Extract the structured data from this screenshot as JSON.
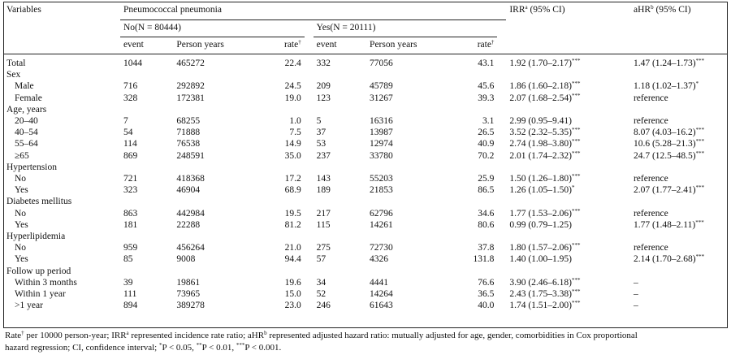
{
  "header": {
    "variables": "Variables",
    "group": "Pneumococcal pneumonia",
    "no_label": "No(N = 80444)",
    "yes_label": "Yes(N = 20111)",
    "irr_prefix": "IRR",
    "irr_sup": "a",
    "irr_suffix": " (95% CI)",
    "ahr_prefix": "aHR",
    "ahr_sup": "b",
    "ahr_suffix": " (95% CI)",
    "event": "event",
    "person_years": "Person years",
    "rate_prefix": "rate",
    "rate_sup": "†"
  },
  "rows": [
    {
      "label": "Total",
      "indent": false,
      "no_event": "1044",
      "no_py": "465272",
      "no_rate": "22.4",
      "yes_event": "332",
      "yes_py": "77056",
      "yes_rate": "43.1",
      "irr": "1.92 (1.70–2.17)",
      "irr_sig": "***",
      "ahr": "1.47 (1.24–1.73)",
      "ahr_sig": "***"
    },
    {
      "label": "Sex",
      "indent": false,
      "no_event": "",
      "no_py": "",
      "no_rate": "",
      "yes_event": "",
      "yes_py": "",
      "yes_rate": "",
      "irr": "",
      "irr_sig": "",
      "ahr": "",
      "ahr_sig": ""
    },
    {
      "label": "Male",
      "indent": true,
      "no_event": "716",
      "no_py": "292892",
      "no_rate": "24.5",
      "yes_event": "209",
      "yes_py": "45789",
      "yes_rate": "45.6",
      "irr": "1.86 (1.60–2.18)",
      "irr_sig": "***",
      "ahr": "1.18 (1.02–1.37)",
      "ahr_sig": "*"
    },
    {
      "label": "Female",
      "indent": true,
      "no_event": "328",
      "no_py": "172381",
      "no_rate": "19.0",
      "yes_event": "123",
      "yes_py": "31267",
      "yes_rate": "39.3",
      "irr": "2.07 (1.68–2.54)",
      "irr_sig": "***",
      "ahr": "reference",
      "ahr_sig": ""
    },
    {
      "label": "Age, years",
      "indent": false,
      "no_event": "",
      "no_py": "",
      "no_rate": "",
      "yes_event": "",
      "yes_py": "",
      "yes_rate": "",
      "irr": "",
      "irr_sig": "",
      "ahr": "",
      "ahr_sig": ""
    },
    {
      "label": "20–40",
      "indent": true,
      "no_event": "7",
      "no_py": "68255",
      "no_rate": "1.0",
      "yes_event": "5",
      "yes_py": "16316",
      "yes_rate": "3.1",
      "irr": "2.99 (0.95–9.41)",
      "irr_sig": "",
      "ahr": "reference",
      "ahr_sig": ""
    },
    {
      "label": "40–54",
      "indent": true,
      "no_event": "54",
      "no_py": "71888",
      "no_rate": "7.5",
      "yes_event": "37",
      "yes_py": "13987",
      "yes_rate": "26.5",
      "irr": "3.52 (2.32–5.35)",
      "irr_sig": "***",
      "ahr": "8.07 (4.03–16.2)",
      "ahr_sig": "***"
    },
    {
      "label": "55–64",
      "indent": true,
      "no_event": "114",
      "no_py": "76538",
      "no_rate": "14.9",
      "yes_event": "53",
      "yes_py": "12974",
      "yes_rate": "40.9",
      "irr": "2.74 (1.98–3.80)",
      "irr_sig": "***",
      "ahr": "10.6 (5.28–21.3)",
      "ahr_sig": "***"
    },
    {
      "label": "≥65",
      "indent": true,
      "no_event": "869",
      "no_py": "248591",
      "no_rate": "35.0",
      "yes_event": "237",
      "yes_py": "33780",
      "yes_rate": "70.2",
      "irr": "2.01 (1.74–2.32)",
      "irr_sig": "***",
      "ahr": "24.7 (12.5–48.5)",
      "ahr_sig": "***"
    },
    {
      "label": "Hypertension",
      "indent": false,
      "no_event": "",
      "no_py": "",
      "no_rate": "",
      "yes_event": "",
      "yes_py": "",
      "yes_rate": "",
      "irr": "",
      "irr_sig": "",
      "ahr": "",
      "ahr_sig": ""
    },
    {
      "label": "No",
      "indent": true,
      "no_event": "721",
      "no_py": "418368",
      "no_rate": "17.2",
      "yes_event": "143",
      "yes_py": "55203",
      "yes_rate": "25.9",
      "irr": "1.50 (1.26–1.80)",
      "irr_sig": "***",
      "ahr": "reference",
      "ahr_sig": ""
    },
    {
      "label": "Yes",
      "indent": true,
      "no_event": "323",
      "no_py": "46904",
      "no_rate": "68.9",
      "yes_event": "189",
      "yes_py": "21853",
      "yes_rate": "86.5",
      "irr": "1.26 (1.05–1.50)",
      "irr_sig": "*",
      "ahr": "2.07 (1.77–2.41)",
      "ahr_sig": "***"
    },
    {
      "label": "Diabetes mellitus",
      "indent": false,
      "no_event": "",
      "no_py": "",
      "no_rate": "",
      "yes_event": "",
      "yes_py": "",
      "yes_rate": "",
      "irr": "",
      "irr_sig": "",
      "ahr": "",
      "ahr_sig": ""
    },
    {
      "label": "No",
      "indent": true,
      "no_event": "863",
      "no_py": "442984",
      "no_rate": "19.5",
      "yes_event": "217",
      "yes_py": "62796",
      "yes_rate": "34.6",
      "irr": "1.77 (1.53–2.06)",
      "irr_sig": "***",
      "ahr": "reference",
      "ahr_sig": ""
    },
    {
      "label": "Yes",
      "indent": true,
      "no_event": "181",
      "no_py": "22288",
      "no_rate": "81.2",
      "yes_event": "115",
      "yes_py": "14261",
      "yes_rate": "80.6",
      "irr": "0.99 (0.79–1.25)",
      "irr_sig": "",
      "ahr": "1.77 (1.48–2.11)",
      "ahr_sig": "***"
    },
    {
      "label": "Hyperlipidemia",
      "indent": false,
      "no_event": "",
      "no_py": "",
      "no_rate": "",
      "yes_event": "",
      "yes_py": "",
      "yes_rate": "",
      "irr": "",
      "irr_sig": "",
      "ahr": "",
      "ahr_sig": ""
    },
    {
      "label": "No",
      "indent": true,
      "no_event": "959",
      "no_py": "456264",
      "no_rate": "21.0",
      "yes_event": "275",
      "yes_py": "72730",
      "yes_rate": "37.8",
      "irr": "1.80 (1.57–2.06)",
      "irr_sig": "***",
      "ahr": "reference",
      "ahr_sig": ""
    },
    {
      "label": "Yes",
      "indent": true,
      "no_event": "85",
      "no_py": "9008",
      "no_rate": "94.4",
      "yes_event": "57",
      "yes_py": "4326",
      "yes_rate": "131.8",
      "irr": "1.40 (1.00–1.95)",
      "irr_sig": "",
      "ahr": "2.14 (1.70–2.68)",
      "ahr_sig": "***"
    },
    {
      "label": "Follow up period",
      "indent": false,
      "no_event": "",
      "no_py": "",
      "no_rate": "",
      "yes_event": "",
      "yes_py": "",
      "yes_rate": "",
      "irr": "",
      "irr_sig": "",
      "ahr": "",
      "ahr_sig": ""
    },
    {
      "label": "Within 3 months",
      "indent": true,
      "no_event": "39",
      "no_py": "19861",
      "no_rate": "19.6",
      "yes_event": "34",
      "yes_py": "4441",
      "yes_rate": "76.6",
      "irr": "3.90 (2.46–6.18)",
      "irr_sig": "***",
      "ahr": "–",
      "ahr_sig": ""
    },
    {
      "label": "Within 1 year",
      "indent": true,
      "no_event": "111",
      "no_py": "73965",
      "no_rate": "15.0",
      "yes_event": "52",
      "yes_py": "14264",
      "yes_rate": "36.5",
      "irr": "2.43 (1.75–3.38)",
      "irr_sig": "***",
      "ahr": "–",
      "ahr_sig": ""
    },
    {
      "label": ">1 year",
      "indent": true,
      "no_event": "894",
      "no_py": "389278",
      "no_rate": "23.0",
      "yes_event": "246",
      "yes_py": "61643",
      "yes_rate": "40.0",
      "irr": "1.74 (1.51–2.00)",
      "irr_sig": "***",
      "ahr": "–",
      "ahr_sig": ""
    }
  ],
  "footnote": {
    "line1": "Rate† per 10000 person-year; IRRa represented incidence rate ratio; aHRb represented adjusted hazard ratio: mutually adjusted for age, gender, comorbidities in Cox proportional",
    "line2": "hazard regression; CI, confidence interval; *P < 0.05, **P < 0.01, ***P < 0.001."
  }
}
